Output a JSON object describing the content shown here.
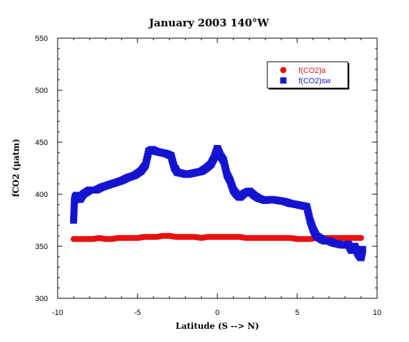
{
  "chart_data": {
    "type": "scatter",
    "title": "January 2003 140°W",
    "xlabel": "Latitude (S --> N)",
    "ylabel": "fCO2 (µatm)",
    "xlim": [
      -10,
      10
    ],
    "ylim": [
      300,
      550
    ],
    "xticks": [
      -10,
      -5,
      0,
      5,
      10
    ],
    "yticks": [
      300,
      350,
      400,
      450,
      500,
      550
    ],
    "xtick_labels": [
      "-10",
      "-5",
      "0",
      "5",
      "10"
    ],
    "ytick_labels": [
      "300",
      "350",
      "400",
      "450",
      "500",
      "550"
    ],
    "grid": false,
    "legend_position": "top-right",
    "series": [
      {
        "name": "f(CO2)a",
        "marker": "circle",
        "color": "#e81010",
        "x": [
          -9.0,
          -8.6,
          -8.2,
          -7.8,
          -7.4,
          -7.0,
          -6.6,
          -6.2,
          -5.8,
          -5.4,
          -5.0,
          -4.6,
          -4.2,
          -3.8,
          -3.4,
          -3.0,
          -2.6,
          -2.2,
          -1.8,
          -1.4,
          -1.0,
          -0.6,
          -0.2,
          0.2,
          0.6,
          1.0,
          1.4,
          1.8,
          2.2,
          2.6,
          3.0,
          3.4,
          3.8,
          4.2,
          4.6,
          5.0,
          5.4,
          5.8,
          6.2,
          6.6,
          7.0,
          7.4,
          7.8,
          8.2,
          8.6,
          9.0
        ],
        "y": [
          357,
          357,
          357,
          357,
          358,
          357,
          357,
          358,
          358,
          358,
          358,
          359,
          359,
          359,
          360,
          360,
          359,
          359,
          359,
          359,
          358,
          359,
          359,
          359,
          359,
          359,
          359,
          358,
          358,
          358,
          358,
          358,
          358,
          358,
          358,
          357,
          357,
          357,
          358,
          358,
          358,
          358,
          358,
          358,
          358,
          358
        ]
      },
      {
        "name": "f(CO2)sw",
        "marker": "square",
        "color": "#1414d0",
        "x": [
          -9.0,
          -8.95,
          -8.9,
          -8.8,
          -8.6,
          -8.4,
          -8.2,
          -8.0,
          -7.6,
          -7.2,
          -6.8,
          -6.4,
          -6.0,
          -5.6,
          -5.2,
          -4.8,
          -4.5,
          -4.3,
          -4.1,
          -3.8,
          -3.5,
          -3.2,
          -2.9,
          -2.7,
          -2.5,
          -2.2,
          -1.9,
          -1.6,
          -1.3,
          -1.0,
          -0.7,
          -0.4,
          -0.2,
          0.0,
          0.2,
          0.4,
          0.6,
          0.8,
          1.0,
          1.2,
          1.4,
          1.7,
          2.0,
          2.3,
          2.6,
          3.0,
          3.4,
          3.8,
          4.2,
          4.6,
          5.0,
          5.3,
          5.6,
          5.8,
          6.0,
          6.2,
          6.4,
          6.6,
          6.8,
          7.0,
          7.3,
          7.6,
          7.9,
          8.2,
          8.4,
          8.6,
          8.8,
          9.0,
          9.1
        ],
        "y": [
          375,
          393,
          397,
          399,
          395,
          400,
          402,
          404,
          404,
          407,
          409,
          411,
          413,
          416,
          418,
          422,
          428,
          441,
          443,
          441,
          440,
          439,
          437,
          426,
          421,
          420,
          419,
          420,
          421,
          422,
          425,
          429,
          435,
          444,
          437,
          432,
          419,
          413,
          404,
          400,
          397,
          401,
          403,
          399,
          396,
          394,
          395,
          394,
          393,
          391,
          390,
          389,
          388,
          375,
          366,
          360,
          358,
          356,
          355,
          355,
          353,
          352,
          351,
          352,
          346,
          350,
          343,
          339,
          347
        ]
      }
    ]
  }
}
